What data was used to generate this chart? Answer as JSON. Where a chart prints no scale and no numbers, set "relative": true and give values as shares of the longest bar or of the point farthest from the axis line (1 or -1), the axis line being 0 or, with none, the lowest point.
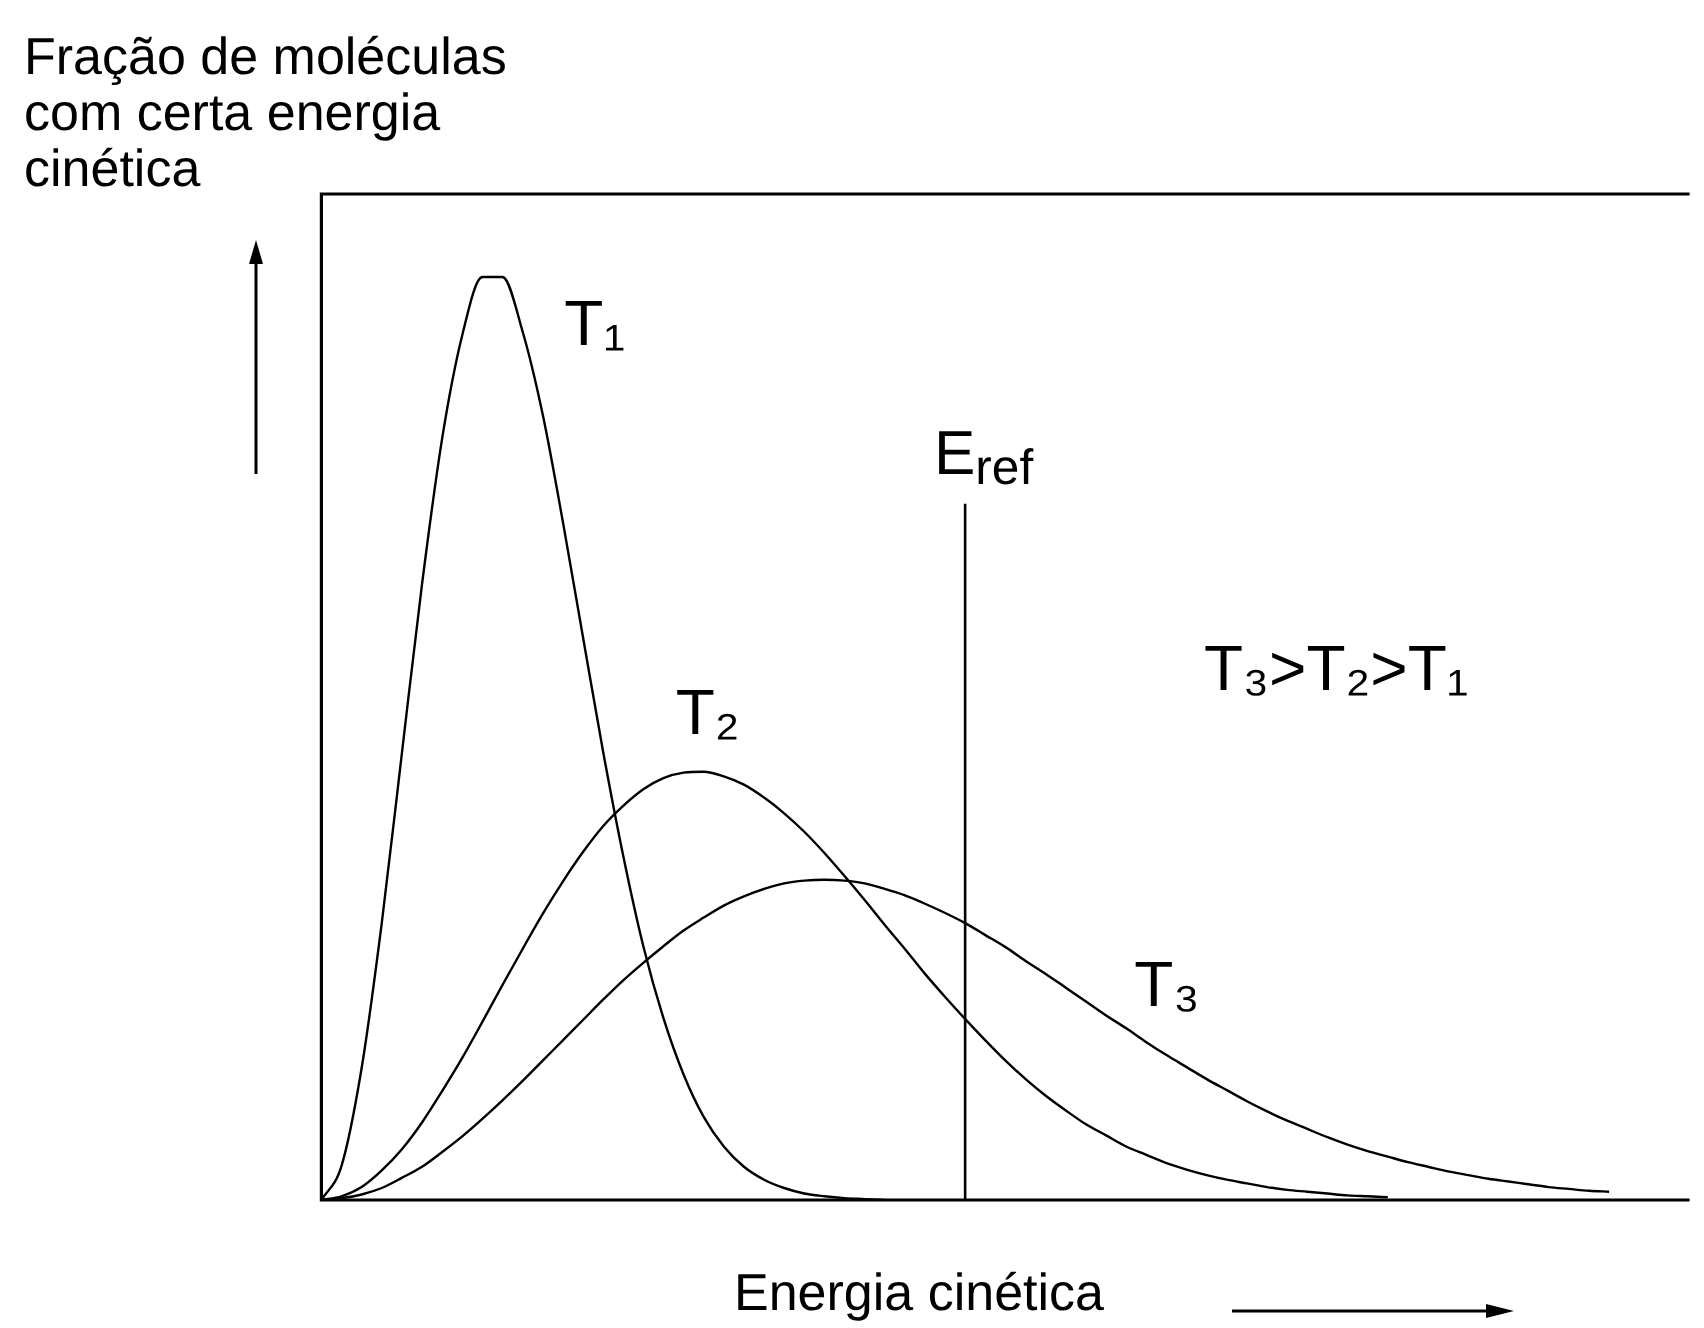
{
  "chart_data": {
    "type": "line",
    "ylabel": "Fração de moléculas com certa energia cinética",
    "xlabel": "Energia cinética",
    "relative": true,
    "legend": false,
    "marker": "none",
    "line_style": "solid",
    "categories": [
      null,
      null,
      null,
      null,
      null,
      null,
      null,
      null,
      null,
      null,
      null,
      null,
      null,
      null,
      null,
      null,
      null,
      null,
      null,
      null,
      null,
      null,
      null,
      null,
      null,
      null,
      null,
      null,
      null,
      null,
      null,
      null,
      null,
      null,
      null,
      null,
      null,
      null,
      null,
      null,
      null,
      null,
      null,
      null,
      null,
      null,
      null,
      null,
      null,
      null,
      null,
      null,
      null,
      null,
      null,
      null,
      null,
      null,
      null,
      null,
      null,
      null,
      null,
      null,
      null,
      null,
      null,
      null,
      null
    ],
    "series": [
      {
        "name": "T₁",
        "color": "#000000",
        "values": [
          0,
          0.037,
          0.143,
          0.3,
          0.484,
          0.667,
          0.825,
          0.937,
          1,
          1,
          0.941,
          0.851,
          0.735,
          0.61,
          0.486,
          0.373,
          0.275,
          0.197,
          0.136,
          0.09,
          0.058,
          0.036,
          0.022,
          0.013,
          0.007,
          0.004,
          0.002,
          0.001,
          0,
          null,
          null,
          null,
          null,
          null,
          null,
          null,
          null,
          null,
          null,
          null,
          null,
          null,
          null,
          null,
          null,
          null,
          null,
          null,
          null,
          null,
          null,
          null,
          null,
          null,
          null,
          null,
          null,
          null,
          null,
          null,
          null,
          null,
          null,
          null,
          null,
          null,
          null,
          null,
          null
        ]
      },
      {
        "name": "T₂",
        "color": "#000000",
        "values": [
          0,
          0.004,
          0.014,
          0.032,
          0.055,
          0.084,
          0.118,
          0.154,
          0.193,
          0.233,
          0.272,
          0.31,
          0.345,
          0.377,
          0.405,
          0.427,
          0.445,
          0.457,
          0.463,
          0.464,
          0.459,
          0.45,
          0.436,
          0.419,
          0.399,
          0.376,
          0.351,
          0.325,
          0.298,
          0.272,
          0.245,
          0.22,
          0.196,
          0.173,
          0.151,
          0.131,
          0.113,
          0.097,
          0.082,
          0.07,
          0.058,
          0.049,
          0.04,
          0.033,
          0.027,
          0.022,
          0.018,
          0.014,
          0.011,
          0.009,
          0.007,
          0.005,
          0.004,
          0.003,
          null,
          null,
          null,
          null,
          null,
          null,
          null,
          null,
          null,
          null,
          null,
          null,
          null,
          null,
          null
        ]
      },
      {
        "name": "T₃",
        "color": "#000000",
        "values": [
          0,
          0.002,
          0.006,
          0.013,
          0.024,
          0.036,
          0.052,
          0.069,
          0.088,
          0.108,
          0.129,
          0.151,
          0.173,
          0.195,
          0.217,
          0.238,
          0.257,
          0.275,
          0.292,
          0.306,
          0.319,
          0.329,
          0.337,
          0.343,
          0.346,
          0.347,
          0.346,
          0.343,
          0.337,
          0.33,
          0.321,
          0.311,
          0.3,
          0.287,
          0.274,
          0.259,
          0.245,
          0.23,
          0.215,
          0.2,
          0.186,
          0.171,
          0.157,
          0.144,
          0.131,
          0.119,
          0.107,
          0.096,
          0.086,
          0.077,
          0.068,
          0.06,
          0.053,
          0.047,
          0.041,
          0.036,
          0.031,
          0.027,
          0.023,
          0.02,
          0.017,
          0.014,
          0.012,
          0.01,
          0.009,
          null,
          null,
          null,
          null
        ]
      }
    ],
    "annotations": [
      "E$_{ref}$",
      "T₃>T₂>T₁"
    ]
  }
}
